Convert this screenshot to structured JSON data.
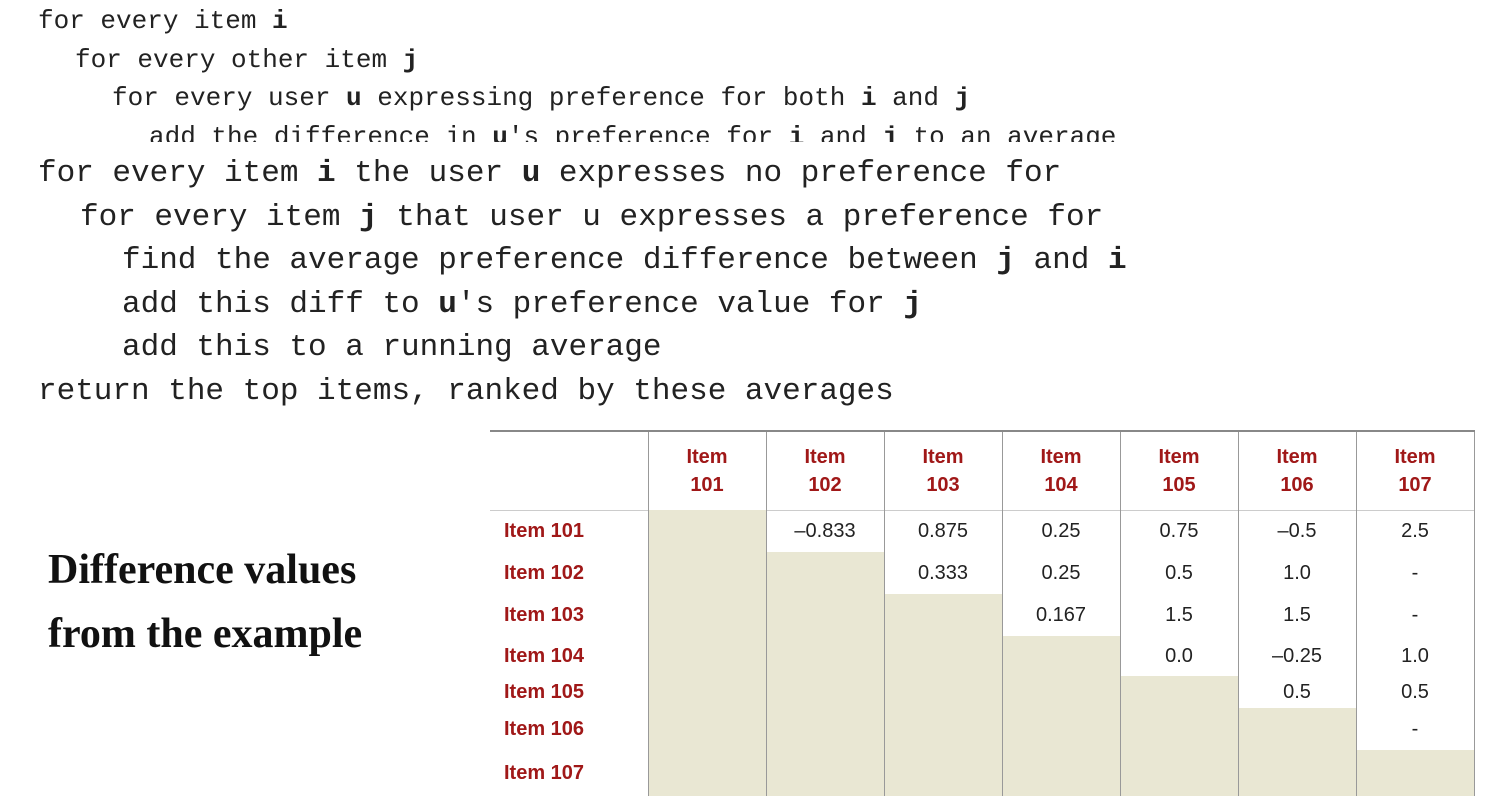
{
  "code_top": {
    "lines": [
      [
        "for every item ",
        "i"
      ],
      [
        "for every other item ",
        "j"
      ],
      [
        "for every user ",
        "u",
        " expressing preference for both ",
        "i",
        " and ",
        "j"
      ],
      [
        "add the difference in ",
        "u",
        "'s preference for ",
        "i",
        " and ",
        "j",
        " to an average"
      ]
    ]
  },
  "code_bottom": {
    "lines": [
      [
        "for every item ",
        "i",
        " the user ",
        "u",
        " expresses no preference for"
      ],
      [
        "for every item ",
        "j",
        " that user u expresses a preference for"
      ],
      [
        "find the average preference difference between ",
        "j",
        " and ",
        "i"
      ],
      [
        "add this diff to ",
        "u",
        "'s preference value for ",
        "j"
      ],
      [
        "add this to a running average"
      ],
      [
        "return the top items, ranked by these averages"
      ]
    ]
  },
  "caption": [
    "Difference values",
    "from the example"
  ],
  "table": {
    "columns": [
      "Item 101",
      "Item 102",
      "Item 103",
      "Item 104",
      "Item 105",
      "Item 106",
      "Item 107"
    ],
    "rows": [
      {
        "label": "Item 101",
        "cells": [
          null,
          "–0.833",
          "0.875",
          "0.25",
          "0.75",
          "–0.5",
          "2.5"
        ]
      },
      {
        "label": "Item 102",
        "cells": [
          null,
          null,
          "0.333",
          "0.25",
          "0.5",
          "1.0",
          "-"
        ]
      },
      {
        "label": "Item 103",
        "cells": [
          null,
          null,
          null,
          "0.167",
          "1.5",
          "1.5",
          "-"
        ]
      },
      {
        "label": "Item 104",
        "cells": [
          null,
          null,
          null,
          null,
          "0.0",
          "–0.25",
          "1.0"
        ]
      },
      {
        "label": "Item 105",
        "cells": [
          null,
          null,
          null,
          null,
          null,
          "0.5",
          "0.5"
        ]
      },
      {
        "label": "Item 106",
        "cells": [
          null,
          null,
          null,
          null,
          null,
          null,
          "-"
        ]
      },
      {
        "label": "Item 107",
        "cells": [
          null,
          null,
          null,
          null,
          null,
          null,
          null
        ]
      }
    ]
  }
}
